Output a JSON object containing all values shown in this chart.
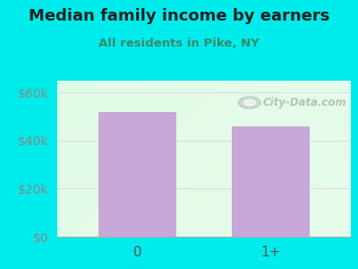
{
  "title": "Median family income by earners",
  "subtitle": "All residents in Pike, NY",
  "categories": [
    "0",
    "1+"
  ],
  "values": [
    52000,
    46000
  ],
  "bar_color": "#c8a8d8",
  "background_color": "#00ecec",
  "title_color": "#222222",
  "subtitle_color": "#3a8a6a",
  "ytick_color": "#888888",
  "xtick_color": "#555555",
  "ylim": [
    0,
    65000
  ],
  "yticks": [
    0,
    20000,
    40000,
    60000
  ],
  "ytick_labels": [
    "$0",
    "$20k",
    "$40k",
    "$60k"
  ],
  "grid_color": "#dddddd",
  "watermark_text": "City-Data.com",
  "watermark_color": "#b0b8b0"
}
